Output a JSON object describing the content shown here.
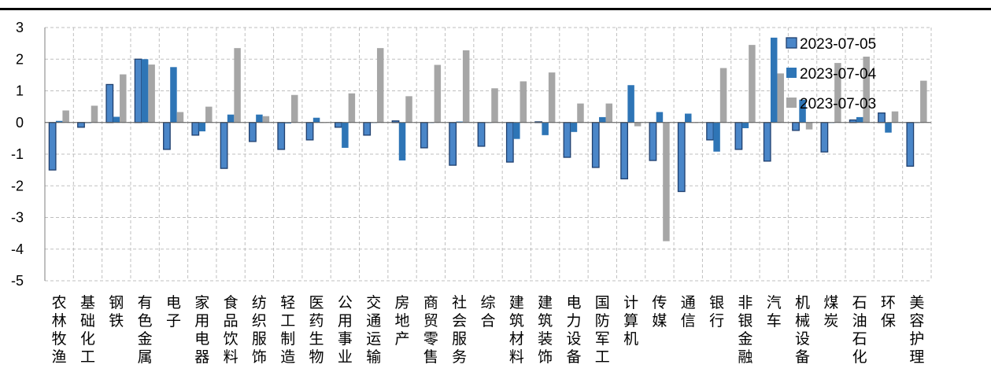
{
  "chart_data": {
    "type": "bar",
    "title": "",
    "xlabel": "",
    "ylabel": "",
    "ylim": [
      -5,
      3
    ],
    "yticks": [
      3,
      2,
      1,
      0,
      -1,
      -2,
      -3,
      -4,
      -5
    ],
    "grid": true,
    "legend_position": "right",
    "categories": [
      "农林牧渔",
      "基础化工",
      "钢铁",
      "有色金属",
      "电子",
      "家用电器",
      "食品饮料",
      "纺织服饰",
      "轻工制造",
      "医药生物",
      "公用事业",
      "交通运输",
      "房地产",
      "商贸零售",
      "社会服务",
      "综合",
      "建筑材料",
      "建筑装饰",
      "电力设备",
      "国防军工",
      "计算机",
      "传媒",
      "通信",
      "银行",
      "非银金融",
      "汽车",
      "机械设备",
      "煤炭",
      "石油石化",
      "环保",
      "美容护理"
    ],
    "series": [
      {
        "name": "2023-07-05",
        "color": "#4a86c8",
        "values": [
          -1.5,
          -0.15,
          1.2,
          2.0,
          -0.85,
          -0.4,
          -1.45,
          -0.6,
          -0.85,
          -0.55,
          -0.15,
          -0.4,
          0.05,
          -0.8,
          -1.35,
          -0.75,
          -1.25,
          0.02,
          -1.1,
          -1.42,
          -1.78,
          -1.2,
          -2.18,
          -0.55,
          -0.85,
          -1.22,
          -0.25,
          -0.93,
          0.08,
          0.3,
          -1.38
        ]
      },
      {
        "name": "2023-07-04",
        "color": "#2e75b6",
        "values": [
          0.05,
          -0.02,
          0.18,
          2.0,
          1.75,
          -0.28,
          0.25,
          0.25,
          -0.03,
          0.15,
          -0.8,
          0.0,
          -1.2,
          0.0,
          0.03,
          0.0,
          -0.52,
          -0.4,
          -0.3,
          0.17,
          1.18,
          0.33,
          0.28,
          -0.92,
          -0.18,
          2.68,
          0.72,
          0.0,
          0.17,
          -0.32,
          0.0
        ]
      },
      {
        "name": "2023-07-03",
        "color": "#a6a6a6",
        "values": [
          0.38,
          0.53,
          1.52,
          1.83,
          0.33,
          0.5,
          2.35,
          0.2,
          0.87,
          0.0,
          0.92,
          2.35,
          0.83,
          1.82,
          2.28,
          1.08,
          1.3,
          1.58,
          0.6,
          0.6,
          -0.12,
          -3.75,
          0.0,
          1.72,
          2.45,
          1.55,
          -0.22,
          1.88,
          2.08,
          0.35,
          1.32
        ]
      }
    ]
  }
}
